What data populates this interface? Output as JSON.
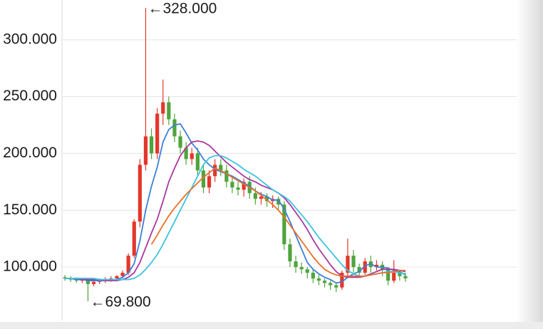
{
  "chart_data": {
    "type": "candlestick",
    "up_color": "#e5362b",
    "down_color": "#4fa43c",
    "ylim": [
      53,
      335
    ],
    "yticks": [
      {
        "value": 100,
        "label": "100.000"
      },
      {
        "value": 150,
        "label": "150.000"
      },
      {
        "value": 200,
        "label": "200.000"
      },
      {
        "value": 250,
        "label": "250.000"
      },
      {
        "value": 300,
        "label": "300.000"
      }
    ],
    "grid": true,
    "open": [
      91,
      90,
      89,
      88,
      89,
      85,
      87,
      88,
      89,
      90,
      92,
      95,
      110,
      140,
      190,
      215,
      200,
      235,
      245,
      230,
      215,
      205,
      195,
      200,
      185,
      170,
      180,
      190,
      185,
      175,
      170,
      168,
      175,
      165,
      160,
      162,
      158,
      160,
      155,
      120,
      105,
      100,
      98,
      95,
      90,
      88,
      86,
      84,
      82,
      95,
      110,
      100,
      95,
      105,
      100,
      102,
      98,
      88,
      95,
      92
    ],
    "close": [
      90,
      89,
      88,
      89,
      85,
      87,
      88,
      89,
      90,
      92,
      95,
      110,
      140,
      190,
      215,
      200,
      235,
      245,
      230,
      215,
      205,
      195,
      200,
      185,
      170,
      180,
      190,
      185,
      175,
      170,
      168,
      175,
      165,
      160,
      162,
      158,
      160,
      155,
      120,
      105,
      100,
      98,
      95,
      90,
      88,
      86,
      84,
      82,
      95,
      110,
      100,
      95,
      105,
      100,
      102,
      98,
      88,
      95,
      92,
      90
    ],
    "low": [
      88,
      87,
      86,
      86,
      69.8,
      83,
      85,
      86,
      87,
      88,
      90,
      93,
      108,
      135,
      185,
      195,
      195,
      225,
      225,
      210,
      200,
      190,
      190,
      180,
      165,
      165,
      175,
      180,
      170,
      165,
      163,
      162,
      160,
      155,
      155,
      153,
      152,
      150,
      115,
      100,
      95,
      94,
      90,
      86,
      84,
      82,
      80,
      78,
      80,
      92,
      95,
      92,
      93,
      95,
      97,
      92,
      84,
      86,
      88,
      87
    ],
    "high": [
      93,
      92,
      91,
      90,
      90,
      88,
      90,
      91,
      92,
      93,
      97,
      112,
      142,
      195,
      328,
      222,
      240,
      265,
      250,
      235,
      220,
      210,
      205,
      205,
      190,
      185,
      195,
      195,
      190,
      180,
      175,
      178,
      180,
      170,
      166,
      165,
      163,
      162,
      158,
      125,
      110,
      104,
      100,
      98,
      93,
      90,
      88,
      86,
      97,
      125,
      115,
      103,
      108,
      110,
      106,
      105,
      100,
      106,
      97,
      95
    ],
    "series": [
      {
        "color": "#3d7fd6",
        "values": [
          90,
          90,
          89,
          89,
          88,
          88,
          88,
          88,
          88,
          89,
          91,
          95,
          103,
          123,
          150,
          171,
          188,
          210,
          221,
          225,
          226,
          218,
          209,
          203,
          195,
          190,
          186,
          184,
          182,
          180,
          177,
          174,
          171,
          167,
          164,
          162,
          159,
          159,
          151,
          140,
          128,
          116,
          104,
          98,
          94,
          91,
          89,
          86,
          87,
          91,
          94,
          96,
          101,
          103,
          100,
          100,
          99,
          97,
          96,
          93
        ]
      },
      {
        "color": "#a8399f",
        "values": [
          90,
          90,
          90,
          89,
          89,
          89,
          89,
          88,
          88,
          88,
          89,
          91,
          95,
          104,
          117,
          130,
          142,
          158,
          175,
          187,
          198,
          205,
          210,
          211,
          210,
          207,
          202,
          197,
          192,
          188,
          184,
          180,
          177,
          175,
          172,
          170,
          168,
          165,
          161,
          155,
          148,
          141,
          133,
          124,
          116,
          109,
          102,
          96,
          92,
          91,
          91,
          91,
          92,
          94,
          96,
          98,
          98,
          98,
          97,
          96
        ]
      },
      {
        "color": "#3cc3df",
        "values": [
          90,
          90,
          90,
          90,
          90,
          90,
          89,
          89,
          89,
          89,
          89,
          89,
          90,
          93,
          98,
          104,
          111,
          120,
          130,
          140,
          150,
          160,
          170,
          180,
          190,
          196,
          198,
          198,
          196,
          193,
          190,
          186,
          183,
          180,
          176,
          172,
          168,
          165,
          162,
          158,
          152,
          146,
          140,
          133,
          126,
          120,
          114,
          108,
          102,
          97,
          94,
          92,
          92,
          93,
          94,
          95,
          96,
          96,
          95,
          94
        ]
      },
      {
        "color": "#eb6f2a",
        "values": [
          null,
          null,
          null,
          null,
          null,
          null,
          null,
          null,
          null,
          null,
          null,
          null,
          null,
          null,
          null,
          120,
          128,
          137,
          145,
          152,
          158,
          164,
          169,
          174,
          179,
          183,
          187,
          185,
          182,
          179,
          176,
          173,
          170,
          167,
          163,
          159,
          155,
          150,
          144,
          137,
          130,
          123,
          116,
          109,
          103,
          98,
          95,
          93,
          92,
          92,
          92,
          92,
          92,
          93,
          94,
          95,
          95,
          96,
          97,
          97
        ]
      }
    ],
    "annotations": [
      {
        "value": 328,
        "label": "←328.000"
      },
      {
        "value": 69.8,
        "label": "←69.800"
      }
    ]
  }
}
